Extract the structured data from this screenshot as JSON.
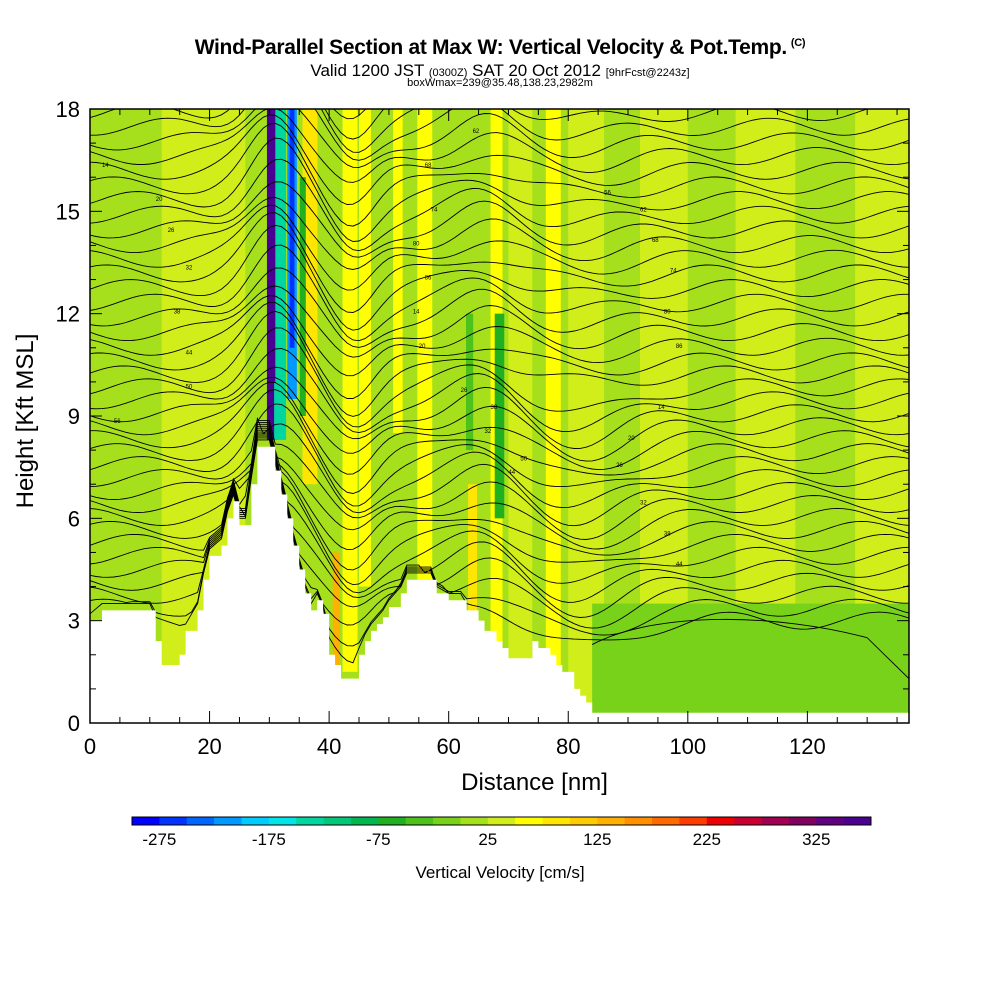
{
  "header": {
    "title": "Wind-Parallel Section at Max W: Vertical Velocity & Pot.Temp.",
    "title_mark": "(C)",
    "subtitle_a": "Valid 1200 JST",
    "subtitle_b": "(0300Z)",
    "subtitle_c": "SAT 20 Oct 2012",
    "subtitle_d": "[9hrFcst@2243z]",
    "subtitle2": "boxWmax=239@35.48,138.23,2982m"
  },
  "chart_data": {
    "type": "heatmap",
    "title": "Wind-Parallel Section at Max W: Vertical Velocity & Pot.Temp.",
    "xlabel": "Distance [nm]",
    "ylabel": "Height [Kft MSL]",
    "xlim": [
      0,
      137
    ],
    "ylim": [
      0,
      18
    ],
    "x_ticks": [
      "0",
      "20",
      "40",
      "60",
      "80",
      "100",
      "120"
    ],
    "y_ticks": [
      "0",
      "3",
      "6",
      "9",
      "12",
      "15",
      "18"
    ],
    "colorbar": {
      "label": "Vertical Velocity [cm/s]",
      "min": -300,
      "max": 375,
      "step": 25,
      "tick_labels": [
        "-275",
        "-175",
        "-75",
        "25",
        "125",
        "225",
        "325"
      ],
      "colors": [
        "#0000ff",
        "#0033ff",
        "#0066ff",
        "#0099ff",
        "#00ccff",
        "#00e5e5",
        "#00d6a0",
        "#00c878",
        "#00b850",
        "#20b020",
        "#4cc21a",
        "#78d21a",
        "#a6e01c",
        "#d2ee1a",
        "#ffff00",
        "#ffe600",
        "#ffcc00",
        "#ffb000",
        "#ff9000",
        "#ff6a00",
        "#ff3c00",
        "#ee0000",
        "#c80032",
        "#a00050",
        "#800060",
        "#600080",
        "#4a0090"
      ]
    },
    "terrain_kft": [
      [
        0,
        3.0
      ],
      [
        2,
        3.3
      ],
      [
        6,
        3.3
      ],
      [
        10,
        3.3
      ],
      [
        11,
        2.4
      ],
      [
        12,
        1.7
      ],
      [
        14,
        1.7
      ],
      [
        15,
        2.0
      ],
      [
        16,
        2.7
      ],
      [
        18,
        3.3
      ],
      [
        19,
        4.2
      ],
      [
        20,
        4.9
      ],
      [
        22,
        5.2
      ],
      [
        23,
        6.0
      ],
      [
        24,
        6.5
      ],
      [
        25,
        5.8
      ],
      [
        26,
        5.8
      ],
      [
        27,
        7.0
      ],
      [
        28,
        8.1
      ],
      [
        30,
        8.1
      ],
      [
        31,
        7.4
      ],
      [
        32,
        6.7
      ],
      [
        33,
        6.0
      ],
      [
        34,
        5.2
      ],
      [
        35,
        4.5
      ],
      [
        36,
        3.8
      ],
      [
        37,
        3.3
      ],
      [
        38,
        3.6
      ],
      [
        39,
        3.2
      ],
      [
        40,
        2.0
      ],
      [
        41,
        1.7
      ],
      [
        42,
        1.3
      ],
      [
        44,
        1.3
      ],
      [
        45,
        2.0
      ],
      [
        46,
        2.4
      ],
      [
        47,
        2.7
      ],
      [
        48,
        2.9
      ],
      [
        49,
        3.1
      ],
      [
        50,
        3.4
      ],
      [
        52,
        3.8
      ],
      [
        53,
        4.2
      ],
      [
        57,
        4.2
      ],
      [
        58,
        3.8
      ],
      [
        60,
        3.6
      ],
      [
        62,
        3.6
      ],
      [
        63,
        3.3
      ],
      [
        65,
        3.0
      ],
      [
        66,
        2.7
      ],
      [
        68,
        2.4
      ],
      [
        69,
        2.2
      ],
      [
        70,
        1.9
      ],
      [
        72,
        1.9
      ],
      [
        74,
        2.4
      ],
      [
        75,
        2.2
      ],
      [
        77,
        2.0
      ],
      [
        78,
        1.7
      ],
      [
        79,
        1.5
      ],
      [
        81,
        1.0
      ],
      [
        82,
        0.8
      ],
      [
        83,
        0.6
      ],
      [
        84,
        0.3
      ],
      [
        137,
        0.3
      ]
    ],
    "updraft_bands": [
      {
        "x": 30.5,
        "w_cms": 350,
        "width_nm": 1.8,
        "zmin": 8.3,
        "zmax": 18
      },
      {
        "x": 31.8,
        "w_cms": -150,
        "width_nm": 2.0,
        "zmin": 8.3,
        "zmax": 18
      },
      {
        "x": 33.8,
        "w_cms": -225,
        "width_nm": 1.6,
        "zmin": 9.5,
        "zmax": 18
      },
      {
        "x": 36.8,
        "w_cms": 75,
        "width_nm": 2.5,
        "zmin": 7.0,
        "zmax": 18
      },
      {
        "x": 43.5,
        "w_cms": 50,
        "width_nm": 2.5,
        "zmin": 1.5,
        "zmax": 18
      },
      {
        "x": 41.2,
        "w_cms": 125,
        "width_nm": 1.2,
        "zmin": 1.3,
        "zmax": 5.0
      },
      {
        "x": 46.0,
        "w_cms": 50,
        "width_nm": 2.0,
        "zmin": 4.0,
        "zmax": 18
      },
      {
        "x": 51.5,
        "w_cms": 50,
        "width_nm": 1.6,
        "zmin": 8.5,
        "zmax": 18
      },
      {
        "x": 56.0,
        "w_cms": 50,
        "width_nm": 2.5,
        "zmin": 4.2,
        "zmax": 18
      },
      {
        "x": 64.0,
        "w_cms": 75,
        "width_nm": 1.5,
        "zmin": 3.0,
        "zmax": 7.0
      },
      {
        "x": 68.0,
        "w_cms": 50,
        "width_nm": 2.0,
        "zmin": 2.0,
        "zmax": 18
      },
      {
        "x": 77.5,
        "w_cms": 50,
        "width_nm": 2.5,
        "zmin": 1.5,
        "zmax": 18
      },
      {
        "x": 68.5,
        "w_cms": -75,
        "width_nm": 1.6,
        "zmin": 6.0,
        "zmax": 12.0
      },
      {
        "x": 63.5,
        "w_cms": -50,
        "width_nm": 1.2,
        "zmin": 8.0,
        "zmax": 12.0
      },
      {
        "x": 35.6,
        "w_cms": -75,
        "width_nm": 1.0,
        "zmin": 9.0,
        "zmax": 16.0
      }
    ],
    "theta_labels": [
      "14",
      "20",
      "26",
      "32",
      "38",
      "44",
      "50",
      "56",
      "62",
      "68",
      "74",
      "80",
      "86"
    ]
  }
}
